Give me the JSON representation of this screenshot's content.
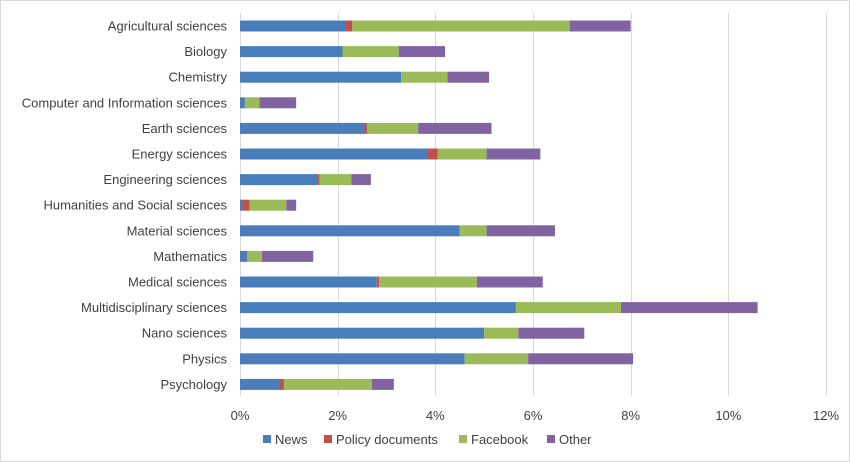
{
  "chart_data": {
    "type": "bar",
    "orientation": "horizontal",
    "stacked": true,
    "title": "",
    "xlabel": "",
    "ylabel": "",
    "xlim": [
      0,
      12
    ],
    "x_ticks": [
      "0%",
      "2%",
      "4%",
      "6%",
      "8%",
      "10%",
      "12%"
    ],
    "x_tick_values": [
      0,
      2,
      4,
      6,
      8,
      10,
      12
    ],
    "value_unit": "%",
    "grid": "vertical",
    "legend_position": "bottom",
    "categories": [
      "Agricultural sciences",
      "Biology",
      "Chemistry",
      "Computer and Information sciences",
      "Earth sciences",
      "Energy sciences",
      "Engineering sciences",
      "Humanities and Social sciences",
      "Material sciences",
      "Mathematics",
      "Medical sciences",
      "Multidisciplinary sciences",
      "Nano sciences",
      "Physics",
      "Psychology"
    ],
    "series": [
      {
        "name": "News",
        "color": "#4a7ebb",
        "values": [
          2.15,
          2.1,
          3.3,
          0.1,
          2.55,
          3.85,
          1.6,
          0.05,
          4.5,
          0.15,
          2.8,
          5.65,
          5.0,
          4.6,
          0.8
        ]
      },
      {
        "name": "Policy documents",
        "color": "#c0504d",
        "values": [
          0.15,
          0.0,
          0.0,
          0.0,
          0.05,
          0.2,
          0.03,
          0.15,
          0.0,
          0.0,
          0.05,
          0.0,
          0.0,
          0.0,
          0.1
        ]
      },
      {
        "name": "Facebook",
        "color": "#9bbb59",
        "values": [
          4.45,
          1.15,
          0.95,
          0.3,
          1.05,
          1.0,
          0.65,
          0.75,
          0.55,
          0.3,
          2.0,
          2.15,
          0.7,
          1.3,
          1.8
        ]
      },
      {
        "name": "Other",
        "color": "#8064a2",
        "values": [
          1.25,
          0.95,
          0.85,
          0.75,
          1.5,
          1.1,
          0.4,
          0.2,
          1.4,
          1.05,
          1.35,
          2.8,
          1.35,
          2.15,
          0.45
        ]
      }
    ]
  }
}
